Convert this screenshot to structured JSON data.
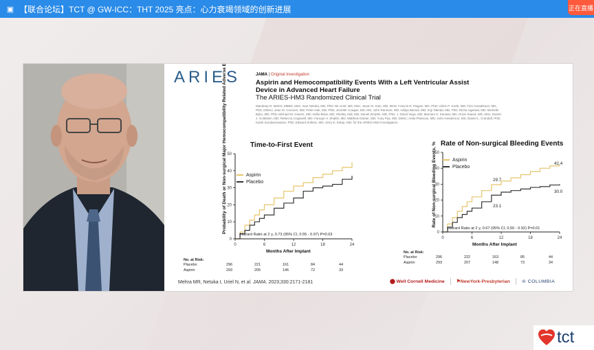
{
  "broadcast": {
    "title": "【联合论坛】TCT @ GW-ICC：THT 2025 亮点：心力衰竭领域的创新进展",
    "live_badge": "正在直播",
    "accent": "#2a8be8",
    "live_color": "#ff5a3c"
  },
  "slide": {
    "trial_logo": "ARIES",
    "journal": "JAMA",
    "journal_section": "Original Investigation",
    "paper_title": "Aspirin and Hemocompatibility Events With a Left Ventricular Assist Device in Advanced Heart Failure",
    "paper_subtitle": "The ARIES-HM3 Randomized Clinical Trial",
    "authors": "Mandeep R. Mehra, MBBS, MSc; Ivan Netuka, MD, PhD; Nir Uriel, MD, MSc; Jason N. Katz, MD, MHS; Francis D. Pagani, MD, PhD; Ulrich P. Jorde, MD; Finn Gustafsson, MD, PhD, DMSci; Jean M. Connors, MD; Peter Ivak, MD, PhD; Jennifer Cowger, MD, MS; John Ransom, MD; Aditya Bansal, MD; Koji Takeda, MD, PhD; Richa Agarwal, MD; Michelle Byku, MD, PhD; Michael M. Givertz, MD; Attilio Betai, MD; Shelley Hall, MD; Daniel Zimpfer, MD, PhD; J. David Vega, MD; Marriam K. Kanwar, MD; Omar Saeed, MD, MSc; Daniel J. Goldstein, MD; Rebecca Cogswell, MD; Faruqui H. Shaikh, MD; Matthew Danter, MD; Yuriy Pya, MD, DMSc; Anita Phancao, MD; John Henderson, MS; Daniel L. Crandall, PhD; Kamil Sundareswaran, PhD; Edward Soltesz, MD; Jerry D. Estep, MD; for the ARIES-HM3 Investigators",
    "citation_prefix": "Mehra MR, Netuka I, Uriel N, et al.",
    "citation_journal": "JAMA",
    "citation_suffix": ". 2023;330:2171-2181",
    "logos": {
      "wcm": "Well Cornell Medicine",
      "nyp": "NewYork-Presbyterian",
      "columbia": "COLUMBIA"
    }
  },
  "chart_data": [
    {
      "type": "line",
      "title": "Time-to-First Event",
      "xlabel": "Months After Implant",
      "ylabel": "Probability of Death or Non-surgical Major Hemocompatibility Related Adverse Events, %",
      "xlim": [
        0,
        24
      ],
      "ylim": [
        0,
        50
      ],
      "xticks": [
        "0",
        "6",
        "12",
        "18",
        "24"
      ],
      "yticks": [
        "0",
        "10",
        "20",
        "30",
        "40",
        "50"
      ],
      "legend_position": "top-left",
      "series": [
        {
          "name": "Aspirin",
          "color": "#e6c46a",
          "x": [
            0,
            1,
            2,
            3,
            4,
            5,
            6,
            8,
            10,
            12,
            14,
            16,
            18,
            20,
            22,
            24
          ],
          "y": [
            0,
            4,
            8,
            11,
            14,
            17,
            20,
            24,
            28,
            31,
            33,
            36,
            38,
            40,
            42,
            45
          ]
        },
        {
          "name": "Placebo",
          "color": "#333333",
          "x": [
            0,
            1,
            2,
            3,
            4,
            5,
            6,
            8,
            10,
            12,
            14,
            16,
            18,
            20,
            22,
            24
          ],
          "y": [
            0,
            3,
            5,
            8,
            10,
            12,
            14,
            18,
            21,
            24,
            28,
            30,
            31,
            32,
            35,
            37
          ]
        }
      ],
      "annotation": "Hazard Ratio at 2 y, 0.73 (95% CI, 0.55 - 0.97) P=0.03",
      "risk_table": {
        "title": "No. at Risk:",
        "rows": [
          {
            "label": "Placebo",
            "values": [
              "296",
              "221",
              "161",
              "84",
              "44"
            ]
          },
          {
            "label": "Aspirin",
            "values": [
              "293",
              "205",
              "146",
              "72",
              "33"
            ]
          }
        ]
      }
    },
    {
      "type": "line",
      "title": "Rate of Non-surgical Bleeding Events",
      "xlabel": "Months After Implant",
      "ylabel": "Rate of Non-surgical Bleeding Events, %",
      "xlim": [
        0,
        24
      ],
      "ylim": [
        0,
        50
      ],
      "xticks": [
        "0",
        "6",
        "12",
        "18",
        "24"
      ],
      "yticks": [
        "0",
        "10",
        "20",
        "30",
        "40",
        "50"
      ],
      "legend_position": "top-left",
      "series": [
        {
          "name": "Aspirin",
          "color": "#e6c46a",
          "x": [
            0,
            1,
            2,
            3,
            4,
            5,
            6,
            8,
            10,
            12,
            14,
            16,
            18,
            20,
            22,
            24
          ],
          "y": [
            0,
            5,
            9,
            13,
            16,
            19,
            22,
            26,
            29.7,
            32,
            34,
            36,
            38,
            40,
            41.5,
            42.4
          ]
        },
        {
          "name": "Placebo",
          "color": "#333333",
          "x": [
            0,
            1,
            2,
            3,
            4,
            5,
            6,
            8,
            10,
            12,
            14,
            16,
            18,
            20,
            22,
            24
          ],
          "y": [
            0,
            3,
            6,
            9,
            11,
            13,
            15,
            19,
            23.1,
            25,
            26,
            27,
            28,
            28.5,
            29.5,
            30.0
          ]
        }
      ],
      "labels": [
        "29.7",
        "23.1",
        "42.4",
        "30.0"
      ],
      "annotation": "Hazard Ratio at 2 y, 0.67 (95% CI, 0.50 - 0.92) P=0.01",
      "risk_table": {
        "title": "No. at Risk:",
        "rows": [
          {
            "label": "Placebo",
            "values": [
              "296",
              "222",
              "163",
              "85",
              "44"
            ]
          },
          {
            "label": "Aspirin",
            "values": [
              "293",
              "207",
              "148",
              "73",
              "34"
            ]
          }
        ]
      }
    }
  ],
  "corner_logo": "tct"
}
